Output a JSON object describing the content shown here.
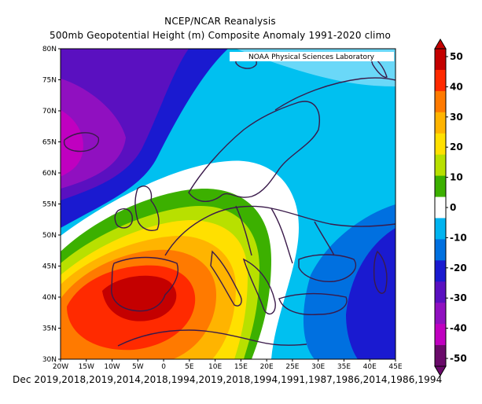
{
  "title": "NCEP/NCAR Reanalysis",
  "subtitle": "500mb Geopotential Height (m) Composite Anomaly 1991-2020 climo",
  "credit": "NOAA Physical Sciences Laboratory",
  "footer": "Dec 2019,2018,2019,2014,2018,1994,2019,2018,1994,1991,1987,1986,2014,1986,1994",
  "map": {
    "lon_range": [
      -20,
      45
    ],
    "lat_range": [
      30,
      80
    ],
    "lon_ticks": [
      "20W",
      "15W",
      "10W",
      "5W",
      "0",
      "5E",
      "10E",
      "15E",
      "20E",
      "25E",
      "30E",
      "35E",
      "40E",
      "45E"
    ],
    "lat_ticks": [
      "30N",
      "35N",
      "40N",
      "45N",
      "50N",
      "55N",
      "60N",
      "65N",
      "70N",
      "75N",
      "80N"
    ],
    "coastline_color": "#3a1a4a"
  },
  "colorbar": {
    "labels": [
      "50",
      "40",
      "30",
      "20",
      "10",
      "0",
      "-10",
      "-20",
      "-30",
      "-40",
      "-50"
    ],
    "colors": [
      "#c40000",
      "#ff2a00",
      "#ff7a00",
      "#ffb400",
      "#ffe000",
      "#b8e000",
      "#3cb000",
      "#ffffff",
      "#00b4f0",
      "#0070e0",
      "#1a1ad0",
      "#5a10c0",
      "#9010c0",
      "#c000c0",
      "#6a0a6a"
    ]
  },
  "legend_labels_order": "top-to-bottom"
}
